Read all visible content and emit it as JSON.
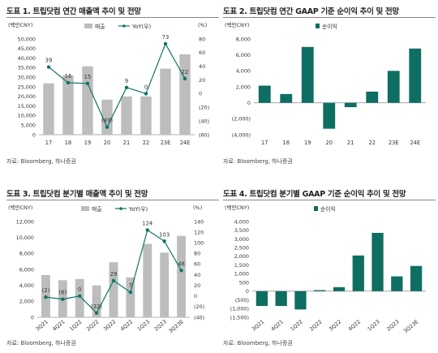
{
  "charts": [
    {
      "title": "도표 1. 트립닷컴 연간 매출액 추이 및 전망",
      "source": "자료: Bloomberg, 하나증권",
      "chart_data": {
        "type": "bar",
        "categories": [
          "17",
          "18",
          "19",
          "20",
          "21",
          "22",
          "23E",
          "24E"
        ],
        "y_left_label": "(백만CNY)",
        "y_right_label": "(%)",
        "y_left_ticks": [
          "0",
          "5,000",
          "10,000",
          "15,000",
          "20,000",
          "25,000",
          "30,000",
          "35,000",
          "40,000",
          "45,000",
          "50,000"
        ],
        "y_right_ticks": [
          "(60)",
          "(40)",
          "(20)",
          "0",
          "20",
          "40",
          "60",
          "80"
        ],
        "ylim_left": [
          0,
          50000
        ],
        "ylim_right": [
          -60,
          80
        ],
        "legend": [
          "매출",
          "YoY(우)"
        ],
        "legend_position": "top",
        "series": [
          {
            "name": "매출",
            "type": "bar",
            "axis": "left",
            "values": [
              26800,
              31000,
              35700,
              18300,
              20000,
              20000,
              34500,
              42000
            ]
          },
          {
            "name": "YoY(우)",
            "type": "line",
            "axis": "right",
            "values": [
              39,
              16,
              15,
              -49,
              9,
              0,
              73,
              22
            ]
          }
        ],
        "data_labels": [
          "39",
          "16",
          "15",
          "(49)",
          "9",
          "0",
          "73",
          "22"
        ]
      }
    },
    {
      "title": "도표 2. 트립닷컴 연간 GAAP 기준 순이익 추이 및 전망",
      "source": "자료: Bloomberg, 하나증권",
      "chart_data": {
        "type": "bar",
        "categories": [
          "17",
          "18",
          "19",
          "20",
          "21",
          "22",
          "23E",
          "24E"
        ],
        "y_left_label": "(백만CNY)",
        "y_left_ticks": [
          "(4,000)",
          "(2,000)",
          "0",
          "2,000",
          "4,000",
          "6,000",
          "8,000"
        ],
        "ylim_left": [
          -4000,
          8000
        ],
        "legend": [
          "순이익"
        ],
        "legend_position": "top",
        "series": [
          {
            "name": "순이익",
            "type": "bar",
            "axis": "left",
            "values": [
              2150,
              1100,
              7000,
              -3250,
              -550,
              1400,
              4000,
              6800
            ]
          }
        ]
      }
    },
    {
      "title": "도표 3. 트립닷컴 분기별 매출액 추이 및 전망",
      "source": "자료: Bloomberg, 하나증권",
      "chart_data": {
        "type": "bar",
        "categories": [
          "3Q21",
          "4Q21",
          "1Q22",
          "2Q22",
          "3Q22",
          "4Q22",
          "1Q23",
          "2Q23",
          "3Q23E"
        ],
        "y_left_label": "(백만CNY)",
        "y_right_label": "(%)",
        "y_left_ticks": [
          "0",
          "2,000",
          "4,000",
          "6,000",
          "8,000",
          "10,000",
          "12,000"
        ],
        "y_right_ticks": [
          "(40)",
          "(20)",
          "0",
          "20",
          "40",
          "60",
          "80",
          "100",
          "120",
          "140"
        ],
        "ylim_left": [
          0,
          12000
        ],
        "ylim_right": [
          -40,
          140
        ],
        "legend": [
          "매출",
          "YoY(우)"
        ],
        "legend_position": "top",
        "series": [
          {
            "name": "매출",
            "type": "bar",
            "axis": "left",
            "values": [
              5300,
              4650,
              4800,
              4000,
              6900,
              5000,
              9200,
              8100,
              10200
            ]
          },
          {
            "name": "YoY(우)",
            "type": "line",
            "axis": "right",
            "values": [
              -2,
              -6,
              0,
              -32,
              29,
              7,
              124,
              103,
              48
            ]
          }
        ],
        "data_labels": [
          "(2)",
          "(6)",
          "0",
          "(32)",
          "29",
          "7",
          "124",
          "103",
          "48"
        ]
      }
    },
    {
      "title": "도표 4. 트립닷컴 분기별 GAAP 기준 순이익 추이 및 전망",
      "source": "자료: Bloomberg, 하나증권",
      "chart_data": {
        "type": "bar",
        "categories": [
          "3Q21",
          "4Q21",
          "1Q22",
          "2Q22",
          "3Q22",
          "4Q22",
          "1Q23",
          "2Q23",
          "3Q23E"
        ],
        "y_left_label": "(백만CNY)",
        "y_left_ticks": [
          "(1,500)",
          "(1,000)",
          "(500)",
          "0",
          "500",
          "1,000",
          "1,500",
          "2,000",
          "2,500",
          "3,000",
          "3,500",
          "4,000"
        ],
        "ylim_left": [
          -1500,
          4000
        ],
        "legend": [
          "순이익"
        ],
        "legend_position": "top",
        "series": [
          {
            "name": "순이익",
            "type": "bar",
            "axis": "left",
            "values": [
              -850,
              -850,
              -1050,
              60,
              230,
              2050,
              3350,
              850,
              1450
            ]
          }
        ]
      }
    }
  ],
  "colors": {
    "bar_gray": "#bdbdbd",
    "line_teal": "#0d7565",
    "bar_teal": "#0f6e62",
    "axis": "#999999"
  }
}
